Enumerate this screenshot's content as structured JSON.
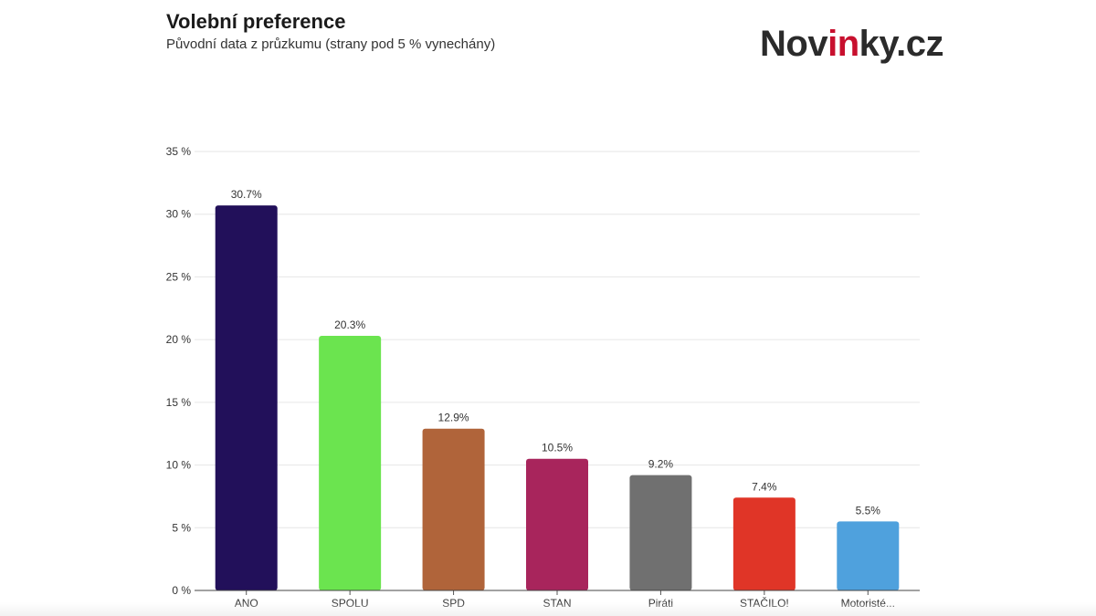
{
  "header": {
    "title": "Volební preference",
    "subtitle": "Původní data z průzkumu (strany pod 5 % vynechány)"
  },
  "logo": {
    "part1": "Nov",
    "part2": "in",
    "part3": "ky.cz"
  },
  "chart_data": {
    "type": "bar",
    "title": "Volební preference",
    "subtitle": "Původní data z průzkumu (strany pod 5 % vynechány)",
    "xlabel": "",
    "ylabel": "",
    "ylim": [
      0,
      35
    ],
    "yticks": [
      0,
      5,
      10,
      15,
      20,
      25,
      30,
      35
    ],
    "ytick_labels": [
      "0 %",
      "5 %",
      "10 %",
      "15 %",
      "20 %",
      "25 %",
      "30 %",
      "35 %"
    ],
    "grid": true,
    "categories": [
      "ANO",
      "SPOLU",
      "SPD",
      "STAN",
      "Piráti",
      "STAČILO!",
      "Motoristé..."
    ],
    "values": [
      30.7,
      20.3,
      12.9,
      10.5,
      9.2,
      7.4,
      5.5
    ],
    "value_labels": [
      "30.7%",
      "20.3%",
      "12.9%",
      "10.5%",
      "9.2%",
      "7.4%",
      "5.5%"
    ],
    "colors": [
      "#22105a",
      "#6be44f",
      "#b0643a",
      "#a8255c",
      "#707070",
      "#e03527",
      "#4fa1dd"
    ]
  }
}
